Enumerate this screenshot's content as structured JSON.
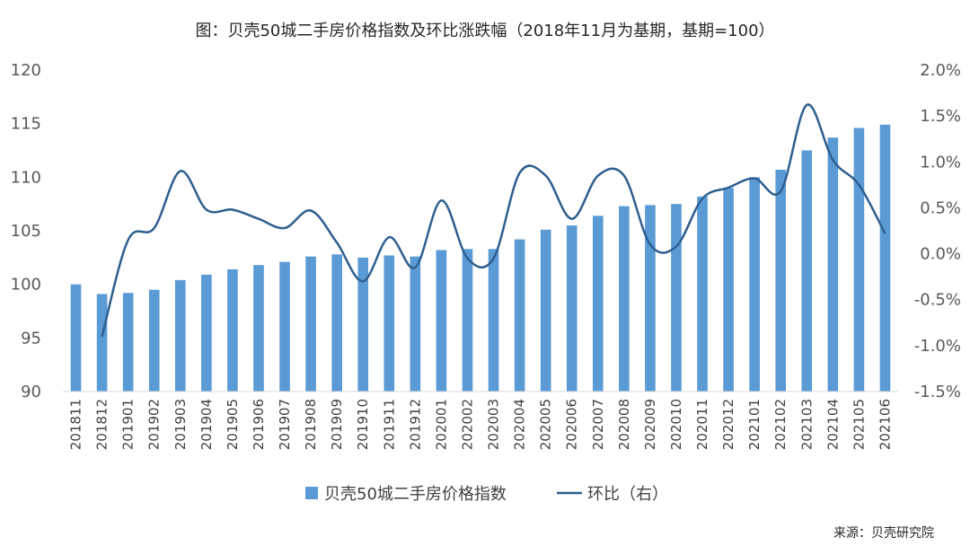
{
  "chart_data": {
    "type": "bar+line",
    "title": "图：贝壳50城二手房价格指数及环比涨跌幅（2018年11月为基期，基期=100）",
    "categories": [
      "201811",
      "201812",
      "201901",
      "201902",
      "201903",
      "201904",
      "201905",
      "201906",
      "201907",
      "201908",
      "201909",
      "201910",
      "201911",
      "201912",
      "202001",
      "202002",
      "202003",
      "202004",
      "202005",
      "202006",
      "202007",
      "202008",
      "202009",
      "202010",
      "202011",
      "202012",
      "202101",
      "202102",
      "202103",
      "202104",
      "202105",
      "202106"
    ],
    "series": [
      {
        "name": "贝壳50城二手房价格指数",
        "type": "bar",
        "axis": "left",
        "color": "#5B9BD5",
        "values": [
          100.0,
          99.1,
          99.2,
          99.5,
          100.4,
          100.9,
          101.4,
          101.8,
          102.1,
          102.6,
          102.8,
          102.5,
          102.7,
          102.6,
          103.2,
          103.3,
          103.3,
          104.2,
          105.1,
          105.5,
          106.4,
          107.3,
          107.4,
          107.5,
          108.2,
          109.0,
          110.0,
          110.7,
          112.5,
          113.7,
          114.6,
          114.9
        ]
      },
      {
        "name": "环比（右）",
        "type": "line",
        "axis": "right",
        "color": "#2E5F8F",
        "values": [
          null,
          -0.9,
          0.15,
          0.28,
          0.9,
          0.48,
          0.48,
          0.38,
          0.28,
          0.47,
          0.12,
          -0.3,
          0.18,
          -0.15,
          0.58,
          -0.05,
          -0.05,
          0.88,
          0.85,
          0.38,
          0.85,
          0.85,
          0.1,
          0.08,
          0.6,
          0.72,
          0.82,
          0.68,
          1.62,
          1.02,
          0.75,
          0.22
        ]
      }
    ],
    "y_left": {
      "min": 90,
      "max": 120,
      "ticks": [
        "90",
        "95",
        "100",
        "105",
        "110",
        "115",
        "120"
      ]
    },
    "y_right": {
      "min": -1.5,
      "max": 2.0,
      "ticks": [
        "-1.5%",
        "-1.0%",
        "-0.5%",
        "0.0%",
        "0.5%",
        "1.0%",
        "1.5%",
        "2.0%"
      ]
    },
    "grid": false,
    "legend_position": "bottom",
    "legend": [
      "贝壳50城二手房价格指数",
      "环比（右）"
    ],
    "source": "来源：贝壳研究院"
  }
}
